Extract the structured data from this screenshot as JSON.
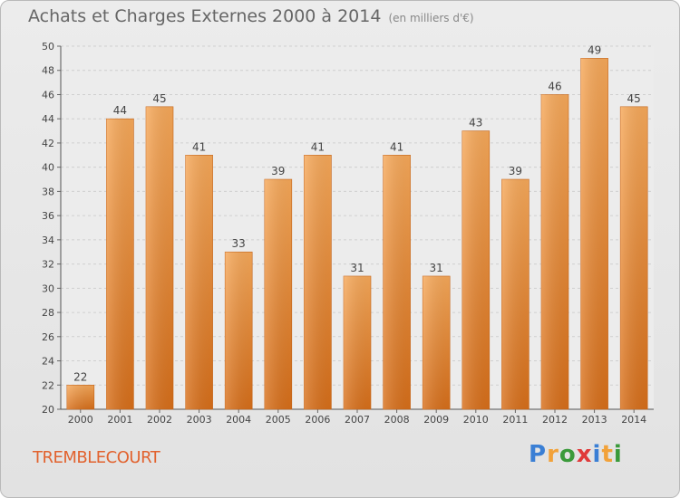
{
  "header": {
    "title": "Achats et Charges Externes 2000 à 2014",
    "subtitle": "(en milliers d'€)"
  },
  "place_name": "TREMBLECOURT",
  "brand": {
    "letters": [
      "P",
      "r",
      "o",
      "x",
      "i",
      "t",
      "i"
    ],
    "colors": [
      "#3a7fd5",
      "#f2a23a",
      "#3a9a3a",
      "#e03a3a",
      "#3a7fd5",
      "#f2a23a",
      "#3a9a3a"
    ]
  },
  "chart_data": {
    "type": "bar",
    "title": "Achats et Charges Externes 2000 à 2014",
    "xlabel": "",
    "ylabel": "",
    "categories": [
      "2000",
      "2001",
      "2002",
      "2003",
      "2004",
      "2005",
      "2006",
      "2007",
      "2008",
      "2009",
      "2010",
      "2011",
      "2012",
      "2013",
      "2014"
    ],
    "values": [
      22,
      44,
      45,
      41,
      33,
      39,
      41,
      31,
      41,
      31,
      43,
      39,
      46,
      49,
      45
    ],
    "ylim": [
      20,
      50
    ],
    "yticks": [
      20,
      22,
      24,
      26,
      28,
      30,
      32,
      34,
      36,
      38,
      40,
      42,
      44,
      46,
      48,
      50
    ],
    "grid": true,
    "bar_color": "#f0973f"
  }
}
